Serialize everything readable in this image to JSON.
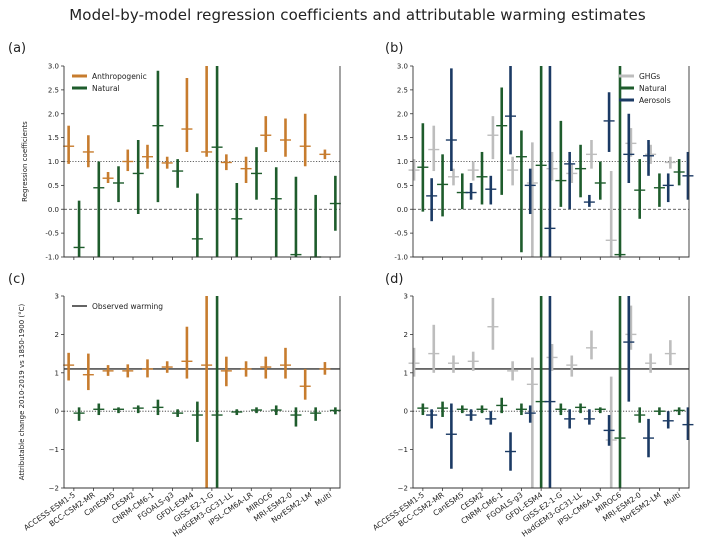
{
  "title": "Model-by-model regression coefficients and attributable warming estimates",
  "colors": {
    "anthropogenic": "#c77c2e",
    "natural": "#1e5c2c",
    "ghg": "#bdbdbd",
    "aerosol": "#1b3a64"
  },
  "chart_data": [
    {
      "panel": "(a)",
      "type": "errorbar",
      "ylabel": "Regression coefficients",
      "ylim": [
        -1.0,
        3.0
      ],
      "yticks": [
        "-1.0",
        "-0.5",
        "0.0",
        "0.5",
        "1.0",
        "1.5",
        "2.0",
        "2.5",
        "3.0"
      ],
      "reference_lines": [
        {
          "y": 1.0,
          "style": "dotted"
        },
        {
          "y": 0.0,
          "style": "dashed"
        }
      ],
      "legend": {
        "placement": "top-left",
        "entries": [
          "Anthropogenic",
          "Natural"
        ]
      },
      "categories": [
        "ACCESS-ESM1-5",
        "BCC-CSM2-MR",
        "CanESM5",
        "CESM2",
        "CNRM-CM6-1",
        "FGOALS-g3",
        "GFDL-ESM4",
        "GISS-E2-1-G",
        "HadGEM3-GC31-LL",
        "IPSL-CM6A-LR",
        "MIROC6",
        "MRI-ESM2-0",
        "NorESM2-LM",
        "Multi"
      ],
      "series": [
        {
          "name": "Anthropogenic",
          "color": "anthropogenic",
          "best": [
            1.32,
            1.2,
            0.65,
            1.0,
            1.1,
            0.97,
            1.68,
            1.2,
            0.98,
            0.85,
            1.55,
            1.45,
            1.32,
            1.15
          ],
          "low": [
            0.95,
            0.88,
            0.55,
            0.8,
            0.85,
            0.85,
            1.2,
            1.1,
            0.82,
            0.55,
            1.2,
            1.1,
            0.9,
            1.05
          ],
          "high": [
            1.75,
            1.55,
            0.78,
            1.25,
            1.35,
            1.1,
            2.75,
            3.0,
            1.15,
            1.1,
            1.95,
            1.9,
            2.0,
            1.25
          ]
        },
        {
          "name": "Natural",
          "color": "natural",
          "best": [
            -0.8,
            0.45,
            0.55,
            0.75,
            1.75,
            0.8,
            -0.62,
            1.3,
            -0.2,
            0.75,
            0.22,
            -0.95,
            -1.0,
            0.12
          ],
          "low": [
            -1.0,
            -1.0,
            0.15,
            -0.1,
            0.15,
            0.45,
            -1.0,
            -1.0,
            -1.0,
            0.2,
            -1.0,
            -1.0,
            -1.0,
            -0.45
          ],
          "high": [
            0.18,
            1.0,
            0.9,
            1.45,
            2.9,
            1.05,
            0.33,
            3.0,
            0.55,
            1.3,
            0.88,
            0.68,
            0.3,
            0.7
          ]
        }
      ]
    },
    {
      "panel": "(b)",
      "type": "errorbar",
      "ylim": [
        -1.0,
        3.0
      ],
      "yticks": [
        "-1.0",
        "-0.5",
        "0.0",
        "0.5",
        "1.0",
        "1.5",
        "2.0",
        "2.5",
        "3.0"
      ],
      "reference_lines": [
        {
          "y": 1.0,
          "style": "dotted"
        },
        {
          "y": 0.0,
          "style": "dashed"
        }
      ],
      "legend": {
        "placement": "top-right",
        "entries": [
          "GHGs",
          "Natural",
          "Aerosols"
        ]
      },
      "categories": [
        "ACCESS-ESM1-5",
        "BCC-CSM2-MR",
        "CanESM5",
        "CESM2",
        "CNRM-CM6-1",
        "FGOALS-g3",
        "GFDL-ESM4",
        "GISS-E2-1-G",
        "HadGEM3-GC31-LL",
        "IPSL-CM6A-LR",
        "MIROC6",
        "MRI-ESM2-0",
        "NorESM2-LM",
        "Multi"
      ],
      "series": [
        {
          "name": "GHGs",
          "color": "ghg",
          "best": [
            0.82,
            1.25,
            0.68,
            0.82,
            1.55,
            0.82,
            0.55,
            0.85,
            0.75,
            1.15,
            -0.65,
            1.38,
            1.15,
            0.98
          ],
          "low": [
            0.6,
            0.8,
            0.5,
            0.6,
            1.05,
            0.5,
            -1.0,
            0.6,
            0.55,
            0.85,
            -1.0,
            1.1,
            0.95,
            0.85
          ],
          "high": [
            1.05,
            1.75,
            0.85,
            1.0,
            1.95,
            1.1,
            1.4,
            1.2,
            0.95,
            1.45,
            0.8,
            1.7,
            1.35,
            1.1
          ]
        },
        {
          "name": "Natural",
          "color": "natural",
          "best": [
            0.88,
            0.52,
            0.35,
            0.68,
            1.75,
            1.1,
            0.92,
            0.6,
            0.85,
            0.55,
            -0.95,
            0.4,
            0.45,
            0.78
          ],
          "low": [
            -0.05,
            -0.15,
            0.0,
            0.1,
            0.3,
            -0.9,
            -1.0,
            0.05,
            0.25,
            0.2,
            -1.0,
            -0.2,
            0.05,
            0.5
          ],
          "high": [
            1.8,
            1.15,
            0.75,
            1.2,
            2.55,
            1.65,
            3.0,
            1.85,
            1.35,
            1.0,
            3.0,
            1.05,
            0.75,
            1.05
          ]
        },
        {
          "name": "Aerosols",
          "color": "aerosol",
          "best": [
            0.28,
            1.45,
            0.35,
            0.42,
            1.95,
            0.5,
            -0.4,
            0.95,
            0.15,
            1.85,
            1.15,
            1.12,
            0.5,
            0.7
          ],
          "low": [
            -0.25,
            0.8,
            0.2,
            0.1,
            1.15,
            -0.1,
            -1.0,
            0.0,
            0.05,
            1.2,
            0.55,
            0.7,
            0.15,
            0.2
          ],
          "high": [
            0.65,
            2.95,
            0.55,
            0.7,
            3.0,
            0.85,
            3.0,
            1.2,
            0.3,
            2.45,
            2.0,
            1.45,
            0.75,
            1.2
          ]
        }
      ]
    },
    {
      "panel": "(c)",
      "type": "errorbar",
      "ylabel": "Attributable change 2010-2019 vs 1850-1900 (°C)",
      "ylim": [
        -2,
        3
      ],
      "yticks": [
        "−2",
        "−1",
        "0",
        "1",
        "2",
        "3"
      ],
      "reference_lines": [
        {
          "y": 1.1,
          "style": "solid"
        },
        {
          "y": 0.0,
          "style": "dotted"
        }
      ],
      "legend": {
        "placement": "top-left",
        "entries": [
          "Observed warming"
        ]
      },
      "categories": [
        "ACCESS-ESM1-5",
        "BCC-CSM2-MR",
        "CanESM5",
        "CESM2",
        "CNRM-CM6-1",
        "FGOALS-g3",
        "GFDL-ESM4",
        "GISS-E2-1-G",
        "HadGEM3-GC31-LL",
        "IPSL-CM6A-LR",
        "MIROC6",
        "MRI-ESM2-0",
        "NorESM2-LM",
        "Multi"
      ],
      "series": [
        {
          "name": "Anthropogenic",
          "color": "anthropogenic",
          "best": [
            1.2,
            0.95,
            1.05,
            1.05,
            1.1,
            1.15,
            1.3,
            1.2,
            1.05,
            1.1,
            1.15,
            1.2,
            0.65,
            1.1
          ],
          "low": [
            0.8,
            0.55,
            0.92,
            0.88,
            0.88,
            1.0,
            0.85,
            -2.0,
            0.65,
            0.9,
            0.85,
            0.85,
            0.3,
            0.95
          ],
          "high": [
            1.52,
            1.5,
            1.2,
            1.22,
            1.35,
            1.3,
            2.2,
            3.0,
            1.42,
            1.3,
            1.42,
            1.65,
            1.1,
            1.28
          ]
        },
        {
          "name": "Natural",
          "color": "natural",
          "best": [
            -0.05,
            0.05,
            0.05,
            0.08,
            0.1,
            -0.05,
            -0.1,
            -0.1,
            -0.02,
            0.03,
            0.03,
            -0.1,
            -0.05,
            0.02
          ],
          "low": [
            -0.25,
            -0.1,
            -0.05,
            -0.05,
            -0.1,
            -0.15,
            -0.8,
            -2.0,
            -0.1,
            -0.05,
            -0.1,
            -0.4,
            -0.25,
            -0.08
          ],
          "high": [
            0.1,
            0.2,
            0.1,
            0.15,
            0.3,
            0.05,
            0.25,
            3.0,
            0.05,
            0.1,
            0.15,
            0.1,
            0.1,
            0.1
          ]
        }
      ]
    },
    {
      "panel": "(d)",
      "type": "errorbar",
      "ylim": [
        -2,
        3
      ],
      "yticks": [
        "−2",
        "−1",
        "0",
        "1",
        "2",
        "3"
      ],
      "reference_lines": [
        {
          "y": 1.1,
          "style": "solid"
        },
        {
          "y": 0.0,
          "style": "dotted"
        }
      ],
      "categories": [
        "ACCESS-ESM1-5",
        "BCC-CSM2-MR",
        "CanESM5",
        "CESM2",
        "CNRM-CM6-1",
        "FGOALS-g3",
        "GFDL-ESM4",
        "GISS-E2-1-G",
        "HadGEM3-GC31-LL",
        "IPSL-CM6A-LR",
        "MIROC6",
        "MRI-ESM2-0",
        "NorESM2-LM",
        "Multi"
      ],
      "series": [
        {
          "name": "GHGs",
          "color": "ghg",
          "best": [
            1.25,
            1.5,
            1.25,
            1.3,
            2.2,
            1.05,
            0.7,
            1.4,
            1.2,
            1.65,
            -0.75,
            2.0,
            1.25,
            1.5
          ],
          "low": [
            0.9,
            1.0,
            1.0,
            1.05,
            1.6,
            0.8,
            -2.0,
            1.05,
            0.9,
            1.35,
            -2.0,
            1.6,
            1.0,
            1.2
          ],
          "high": [
            1.65,
            2.25,
            1.45,
            1.55,
            2.95,
            1.3,
            1.4,
            1.75,
            1.45,
            2.1,
            0.9,
            2.75,
            1.5,
            1.85
          ]
        },
        {
          "name": "Natural",
          "color": "natural",
          "best": [
            0.08,
            0.08,
            0.05,
            0.05,
            0.15,
            0.05,
            0.25,
            0.05,
            0.1,
            0.05,
            -0.7,
            -0.1,
            0.0,
            0.02
          ],
          "low": [
            -0.1,
            -0.15,
            -0.05,
            -0.05,
            -0.05,
            -0.1,
            -2.0,
            -0.1,
            -0.05,
            -0.05,
            -2.0,
            -0.3,
            -0.1,
            -0.1
          ],
          "high": [
            0.2,
            0.25,
            0.15,
            0.15,
            0.35,
            0.2,
            3.0,
            0.2,
            0.2,
            0.1,
            3.0,
            0.1,
            0.1,
            0.1
          ]
        },
        {
          "name": "Aerosols",
          "color": "aerosol",
          "best": [
            -0.1,
            -0.6,
            -0.1,
            -0.2,
            -1.05,
            -0.05,
            0.25,
            -0.2,
            -0.2,
            -0.5,
            1.8,
            -0.7,
            -0.25,
            -0.35
          ],
          "low": [
            -0.45,
            -1.5,
            -0.25,
            -0.35,
            -1.55,
            -0.3,
            -2.0,
            -0.45,
            -0.35,
            -0.9,
            0.25,
            -1.2,
            -0.45,
            -0.75
          ],
          "high": [
            0.05,
            0.2,
            0.05,
            0.0,
            -0.55,
            0.15,
            3.0,
            0.05,
            0.05,
            -0.1,
            3.0,
            -0.2,
            0.0,
            0.1
          ]
        }
      ]
    }
  ]
}
